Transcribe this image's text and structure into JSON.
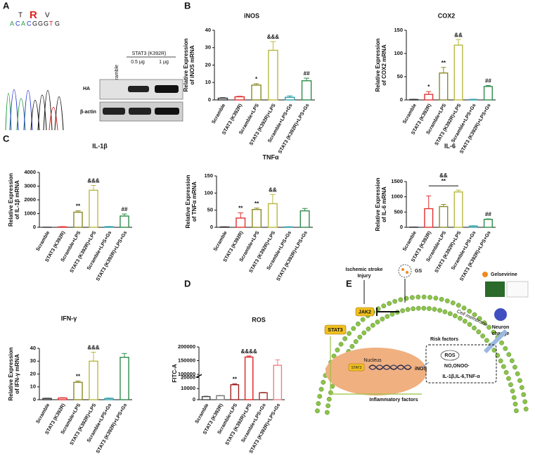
{
  "panel_labels": [
    "A",
    "B",
    "C",
    "D",
    "E"
  ],
  "panel_a": {
    "amino_acids": [
      "T",
      "R",
      "V"
    ],
    "sequence": [
      "A",
      "C",
      "A",
      "C",
      "G",
      "G",
      "G",
      "T",
      "G"
    ],
    "lanes": [
      "Scramble",
      "STAT3 (K392R)"
    ],
    "doses": [
      "0.5 μg",
      "1 μg"
    ],
    "blots": [
      "HA",
      "β-actin"
    ]
  },
  "chart_data": [
    {
      "type": "bar",
      "title": "iNOS",
      "ylabel": [
        "Relative Expression",
        "of iNOS mRNA"
      ],
      "categories": [
        "Scramble",
        "STAT3 (K392R)",
        "Scramble+LPS",
        "STAT3 (K392R)+LPS",
        "Scramble+LPS+Gs",
        "STAT3 (K392R)+LPS+Gs"
      ],
      "colors": [
        "#333333",
        "#e03030",
        "#8a8a25",
        "#b8b840",
        "#2fa0a8",
        "#2e8b4a"
      ],
      "values": [
        1,
        1.8,
        8.5,
        28.5,
        1.5,
        11
      ],
      "errors": [
        0.3,
        0.3,
        0.8,
        5,
        0.8,
        1.5
      ],
      "ylim": [
        0,
        40
      ],
      "yticks": [
        0,
        10,
        20,
        30,
        40
      ],
      "annotations": [
        {
          "index": 2,
          "text": "*"
        },
        {
          "index": 3,
          "text": "&&&"
        },
        {
          "index": 5,
          "text": "##"
        }
      ]
    },
    {
      "type": "bar",
      "title": "COX2",
      "ylabel": [
        "Relative Expression",
        "of COX2 mRNA"
      ],
      "categories": [
        "Scramble",
        "STAT3 (K392R)",
        "Scramble+LPS",
        "STAT3 (K392R)+LPS",
        "Scramble+LPS+Gs",
        "STAT3 (K392R)+LPS+Gs"
      ],
      "colors": [
        "#333333",
        "#e03030",
        "#8a8a25",
        "#b8b840",
        "#2fa0a8",
        "#2e8b4a"
      ],
      "values": [
        1,
        12,
        58,
        118,
        1,
        29
      ],
      "errors": [
        0.5,
        6,
        12,
        12,
        0.5,
        2
      ],
      "ylim": [
        0,
        150
      ],
      "yticks": [
        0,
        50,
        100,
        150
      ],
      "annotations": [
        {
          "index": 1,
          "text": "*"
        },
        {
          "index": 2,
          "text": "**"
        },
        {
          "index": 3,
          "text": "&&"
        },
        {
          "index": 5,
          "text": "##"
        }
      ]
    },
    {
      "type": "bar",
      "title": "IL-1β",
      "ylabel": [
        "Relative Expression",
        "of IL-1β mRNA"
      ],
      "categories": [
        "Scramble",
        "STAT3 (K392R)",
        "Scramble+LPS",
        "STAT3 (K392R)+LPS",
        "Scramble+LPS+Gs",
        "STAT3 (K392R)+LPS+Gs"
      ],
      "colors": [
        "#333333",
        "#e03030",
        "#8a8a25",
        "#b8b840",
        "#2fa0a8",
        "#2e8b4a"
      ],
      "values": [
        5,
        30,
        1100,
        2700,
        40,
        820
      ],
      "errors": [
        2,
        20,
        100,
        350,
        20,
        150
      ],
      "ylim": [
        0,
        4000
      ],
      "yticks": [
        0,
        1000,
        2000,
        3000,
        4000
      ],
      "annotations": [
        {
          "index": 2,
          "text": "**"
        },
        {
          "index": 3,
          "text": "&&&"
        },
        {
          "index": 5,
          "text": "##"
        }
      ]
    },
    {
      "type": "bar",
      "title": "TNFα",
      "ylabel": [
        "Relative Expression",
        "of TNFα mRNA"
      ],
      "categories": [
        "Scramble",
        "STAT3 (K392R)",
        "Scramble+LPS",
        "STAT3 (K392R)+LPS",
        "Scramble+LPS+Gs",
        "STAT3 (K392R)+LPS+Gs"
      ],
      "colors": [
        "#333333",
        "#e03030",
        "#8a8a25",
        "#b8b840",
        "#2fa0a8",
        "#2e8b4a"
      ],
      "values": [
        1,
        27,
        52,
        69,
        1,
        48
      ],
      "errors": [
        0.5,
        15,
        4,
        27,
        0.5,
        7
      ],
      "ylim": [
        0,
        150
      ],
      "yticks": [
        0,
        50,
        100,
        150
      ],
      "annotations": [
        {
          "index": 1,
          "text": "**"
        },
        {
          "index": 2,
          "text": "**"
        },
        {
          "index": 3,
          "text": "&&"
        }
      ]
    },
    {
      "type": "bar",
      "title": "IL-6",
      "ylabel": [
        "Relative Expression",
        "of IL-6 mRNA"
      ],
      "categories": [
        "Scramble",
        "STAT3 (K392R)",
        "Scramble+LPS",
        "STAT3 (K392R)+LPS",
        "Scramble+LPS+Gs",
        "STAT3 (K392R)+LPS+Gs"
      ],
      "colors": [
        "#333333",
        "#e03030",
        "#8a8a25",
        "#b8b840",
        "#2fa0a8",
        "#2e8b4a"
      ],
      "values": [
        5,
        610,
        680,
        1160,
        40,
        260
      ],
      "errors": [
        2,
        420,
        70,
        60,
        10,
        15
      ],
      "ylim": [
        0,
        1500
      ],
      "yticks": [
        0,
        500,
        1000,
        1500
      ],
      "annotations": [
        {
          "index": 5,
          "text": "##"
        }
      ],
      "bracket": {
        "from": 1,
        "to": 3,
        "labels": [
          "&&",
          "**"
        ]
      }
    },
    {
      "type": "bar",
      "title": "IFN-γ",
      "ylabel": [
        "Relative Expression",
        "of IFN-γ mRNA"
      ],
      "categories": [
        "Scramble",
        "STAT3 (K392R)",
        "Scramble+LPS",
        "STAT3 (K392R)+LPS",
        "Scramble+LPS+Gs",
        "STAT3 (K392R)+LPS+Gs"
      ],
      "colors": [
        "#333333",
        "#e03030",
        "#8a8a25",
        "#b8b840",
        "#2fa0a8",
        "#2e8b4a"
      ],
      "values": [
        1,
        1.3,
        13.5,
        30,
        1,
        33
      ],
      "errors": [
        0.2,
        0.3,
        1,
        7,
        0.3,
        3
      ],
      "ylim": [
        0,
        40
      ],
      "yticks": [
        0,
        10,
        20,
        30,
        40
      ],
      "annotations": [
        {
          "index": 2,
          "text": "**"
        },
        {
          "index": 3,
          "text": "&&&"
        }
      ]
    },
    {
      "type": "bar",
      "title": "ROS",
      "ylabel": [
        "FITC-A"
      ],
      "categories": [
        "Scramble",
        "STAT3 (K392R)",
        "Scramble+LPS",
        "STAT3 (K392R)+LPS",
        "Scramble+LPS+Gs",
        "STAT3 (K392R)+LPS+Gs"
      ],
      "colors": [
        "#444444",
        "#777777",
        "#a02020",
        "#e02020",
        "#a03030",
        "#f08080"
      ],
      "values": [
        2800,
        3600,
        13500,
        163000,
        6300,
        133000
      ],
      "errors": [
        300,
        200,
        800,
        4000,
        300,
        20000
      ],
      "ylim": [
        0,
        200000
      ],
      "ybreak": [
        20000,
        100000
      ],
      "yticks": [
        0,
        10000,
        20000,
        100000,
        150000,
        200000
      ],
      "annotations": [
        {
          "index": 2,
          "text": "**"
        },
        {
          "index": 3,
          "text": "&&&&"
        }
      ]
    }
  ],
  "panel_e": {
    "injury": [
      "Ischemic stroke",
      "Injury"
    ],
    "drug": "GS",
    "compound": "Gelsevirine",
    "membrane": "Cell membrane",
    "kinase": "JAK2",
    "factor": "STAT3",
    "nucleus": "Nucleus",
    "nuclear_factor": "STAT3",
    "gene": "iNOS",
    "risk_title": "Risk factors",
    "ros": "ROS",
    "species": "NO,ONOO·",
    "cytokines": "IL-1β,IL-6,TNF-α",
    "outcome": [
      "Neuron",
      "change"
    ],
    "inflammatory": "Inflammatory factors"
  }
}
